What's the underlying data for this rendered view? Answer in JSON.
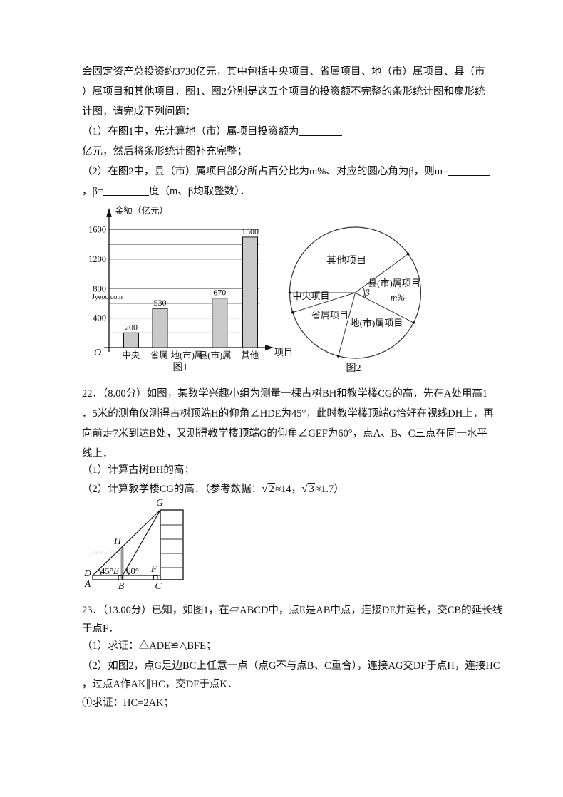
{
  "watermark": "Jyeoo.com",
  "p21": {
    "l1": "会固定资产总投资约3730亿元，其中包括中央项目、省属项目、地（市）属项目、县（市",
    "l2": "）属项目和其他项目．图1、图2分别是这五个项目的投资额不完整的条形统计图和扇形统",
    "l3": "计图，请完成下列问题：",
    "l4": "（1）在图1中，先计算地（市）属项目投资额为",
    "l5": "亿元，然后将条形统计图补充完整；",
    "l6": "（2）在图2中，县（市）属项目部分所占百分比为m%、对应的圆心角为β，则m=",
    "l7a": "，β=",
    "l7b": "度（m、β均取整数）．"
  },
  "chart_data": [
    {
      "type": "bar",
      "title": "图1",
      "ylabel": "金额（亿元）",
      "xlabel": "项目",
      "origin_label": "O",
      "categories": [
        "中央",
        "省属",
        "地(市)属",
        "县(市)属",
        "其他"
      ],
      "values": [
        200,
        530,
        null,
        670,
        1500
      ],
      "yticks": [
        400,
        800,
        1200,
        1600
      ],
      "ylim": [
        0,
        1700
      ],
      "gridline_step": 200,
      "grid": true
    },
    {
      "type": "pie",
      "title": "图2",
      "slices": [
        {
          "label": "其他项目",
          "start_angle": 36.3,
          "end_angle": 180
        },
        {
          "label": "中央项目",
          "start_angle": 180,
          "end_angle": 197.5
        },
        {
          "label": "省属项目",
          "start_angle": 197.5,
          "end_angle": 255
        },
        {
          "label": "地(市)属项目",
          "start_angle": 255,
          "end_angle": 332.8
        },
        {
          "label": "县(市)属项目",
          "start_angle": 332.8,
          "end_angle": 36.3,
          "value_label": "m%"
        }
      ],
      "angle_label": "β"
    }
  ],
  "p22": {
    "l1": "22．（8.00分）如图，某数学兴趣小组为测量一棵古树BH和教学楼CG的高，先在A处用高1",
    "l2": "．5米的测角仪测得古树顶端H的仰角∠HDE为45°，此时教学楼顶端G恰好在视线DH上，再",
    "l3": "向前走7米到达B处，又测得教学楼顶端G的仰角∠GEF为60°，点A、B、C三点在同一水平",
    "l4": "线上．",
    "item1": "（1）计算古树BH的高；",
    "item2_pre": "（2）计算教学楼CG的高．（参考数据：",
    "sqrt_sign": "√",
    "rad1": "2",
    "item2_mid": "≈14，",
    "rad2": "3",
    "item2_post": "≈1.7）"
  },
  "figure22": {
    "labels": {
      "G": "G",
      "H": "H",
      "D": "D",
      "A": "A",
      "E": "E",
      "B": "B",
      "F": "F",
      "C": "C"
    },
    "angle_d": "45°",
    "angle_e": "60°"
  },
  "p23": {
    "l1": "23．（13.00分）已知，如图1，在▱ABCD中，点E是AB中点，连接DE并延长，交CB的延长线",
    "l2": "于点F．",
    "item1": "（1）求证：△ADE≌△BFE；",
    "item2a": "（2）如图2，点G是边BC上任意一点（点G不与点B、C重合），连接AG交DF于点H，连接HC",
    "item2b": "，过点A作AK∥HC，交DF于点K．",
    "sub1": "①求证：HC=2AK；"
  }
}
